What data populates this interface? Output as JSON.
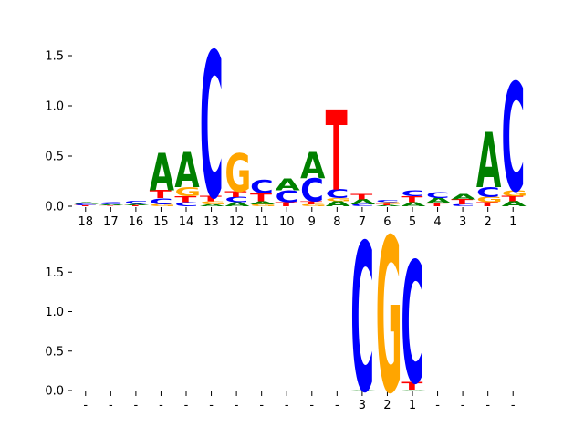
{
  "colors": {
    "A": "#008000",
    "C": "#0000ff",
    "G": "#ffa500",
    "T": "#ff0000"
  },
  "chart_data": [
    {
      "type": "sequence-logo",
      "title": "",
      "xlabel": "",
      "ylabel": "",
      "ylim": [
        0,
        1.6
      ],
      "yticks": [
        0.0,
        0.5,
        1.0,
        1.5
      ],
      "ytick_labels": [
        "0.0",
        "0.5",
        "1.0",
        "1.5"
      ],
      "xtick_labels": [
        "18",
        "17",
        "16",
        "15",
        "14",
        "13",
        "12",
        "11",
        "10",
        "9",
        "8",
        "7",
        "6",
        "5",
        "4",
        "3",
        "2",
        "1"
      ],
      "positions": [
        {
          "stack": [
            [
              "T",
              0.01
            ],
            [
              "C",
              0.015
            ],
            [
              "A",
              0.015
            ]
          ]
        },
        {
          "stack": [
            [
              "T",
              0.008
            ],
            [
              "A",
              0.012
            ],
            [
              "C",
              0.02
            ]
          ]
        },
        {
          "stack": [
            [
              "T",
              0.01
            ],
            [
              "A",
              0.012
            ],
            [
              "C",
              0.028
            ]
          ]
        },
        {
          "stack": [
            [
              "G",
              0.02
            ],
            [
              "C",
              0.06
            ],
            [
              "T",
              0.08
            ],
            [
              "A",
              0.37
            ]
          ]
        },
        {
          "stack": [
            [
              "C",
              0.04
            ],
            [
              "T",
              0.06
            ],
            [
              "G",
              0.09
            ],
            [
              "A",
              0.35
            ]
          ]
        },
        {
          "stack": [
            [
              "A",
              0.02
            ],
            [
              "G",
              0.03
            ],
            [
              "T",
              0.05
            ],
            [
              "C",
              1.45
            ]
          ]
        },
        {
          "stack": [
            [
              "A",
              0.04
            ],
            [
              "C",
              0.05
            ],
            [
              "T",
              0.06
            ],
            [
              "G",
              0.38
            ]
          ]
        },
        {
          "stack": [
            [
              "G",
              0.02
            ],
            [
              "A",
              0.03
            ],
            [
              "T",
              0.08
            ],
            [
              "C",
              0.13
            ]
          ]
        },
        {
          "stack": [
            [
              "T",
              0.04
            ],
            [
              "C",
              0.12
            ],
            [
              "A",
              0.12
            ]
          ]
        },
        {
          "stack": [
            [
              "G",
              0.02
            ],
            [
              "T",
              0.03
            ],
            [
              "C",
              0.23
            ],
            [
              "A",
              0.26
            ]
          ]
        },
        {
          "stack": [
            [
              "A",
              0.05
            ],
            [
              "G",
              0.03
            ],
            [
              "C",
              0.09
            ],
            [
              "T",
              0.8
            ]
          ]
        },
        {
          "stack": [
            [
              "C",
              0.02
            ],
            [
              "A",
              0.05
            ],
            [
              "T",
              0.05
            ]
          ]
        },
        {
          "stack": [
            [
              "A",
              0.01
            ],
            [
              "T",
              0.015
            ],
            [
              "G",
              0.015
            ],
            [
              "C",
              0.02
            ]
          ]
        },
        {
          "stack": [
            [
              "A",
              0.04
            ],
            [
              "T",
              0.06
            ],
            [
              "C",
              0.06
            ]
          ]
        },
        {
          "stack": [
            [
              "T",
              0.03
            ],
            [
              "A",
              0.05
            ],
            [
              "C",
              0.06
            ]
          ]
        },
        {
          "stack": [
            [
              "C",
              0.02
            ],
            [
              "T",
              0.05
            ],
            [
              "A",
              0.05
            ]
          ]
        },
        {
          "stack": [
            [
              "T",
              0.04
            ],
            [
              "G",
              0.05
            ],
            [
              "C",
              0.1
            ],
            [
              "A",
              0.55
            ]
          ]
        },
        {
          "stack": [
            [
              "A",
              0.05
            ],
            [
              "T",
              0.05
            ],
            [
              "G",
              0.06
            ],
            [
              "C",
              1.08
            ]
          ]
        }
      ]
    },
    {
      "type": "sequence-logo",
      "title": "",
      "xlabel": "",
      "ylabel": "",
      "ylim": [
        0,
        2.0
      ],
      "yticks": [
        0.0,
        0.5,
        1.0,
        1.5
      ],
      "ytick_labels": [
        "0.0",
        "0.5",
        "1.0",
        "1.5"
      ],
      "xtick_labels": [
        "-",
        "-",
        "-",
        "-",
        "-",
        "-",
        "-",
        "-",
        "-",
        "-",
        "-",
        "3",
        "2",
        "1",
        "-",
        "-",
        "-",
        "-"
      ],
      "positions": [
        {
          "stack": []
        },
        {
          "stack": []
        },
        {
          "stack": []
        },
        {
          "stack": []
        },
        {
          "stack": []
        },
        {
          "stack": []
        },
        {
          "stack": []
        },
        {
          "stack": []
        },
        {
          "stack": []
        },
        {
          "stack": []
        },
        {
          "stack": []
        },
        {
          "stack": [
            [
              "A",
              0.01
            ],
            [
              "C",
              1.88
            ]
          ]
        },
        {
          "stack": [
            [
              "G",
              1.96
            ]
          ]
        },
        {
          "stack": [
            [
              "A",
              0.01
            ],
            [
              "T",
              0.1
            ],
            [
              "C",
              1.54
            ]
          ]
        },
        {
          "stack": []
        },
        {
          "stack": []
        },
        {
          "stack": []
        },
        {
          "stack": []
        }
      ]
    }
  ]
}
